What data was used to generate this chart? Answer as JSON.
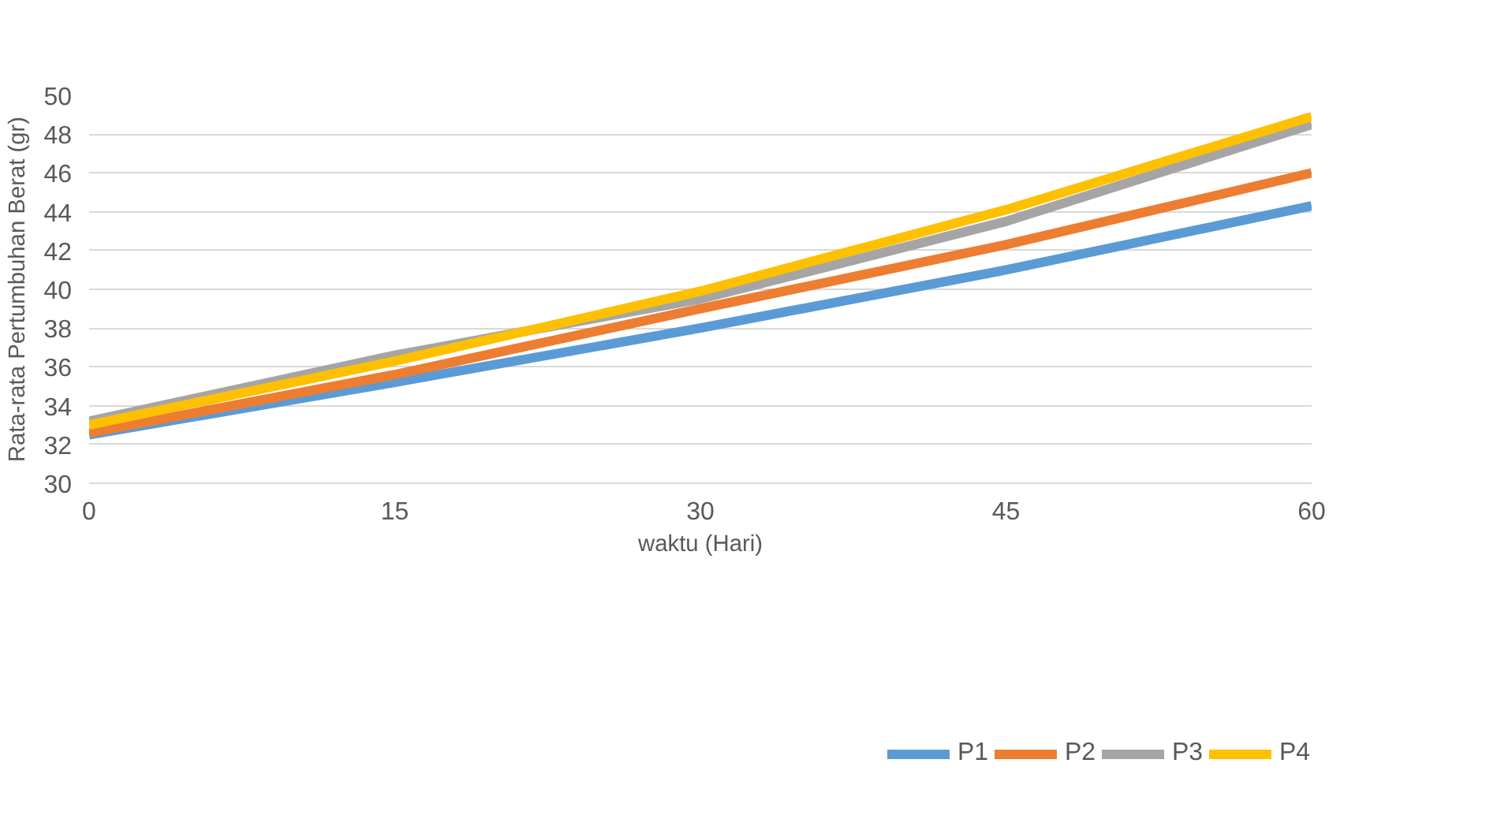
{
  "chart_data": {
    "type": "line",
    "xlabel": "waktu (Hari)",
    "ylabel": "Rata-rata Pertumbuhan Berat (gr)",
    "x": [
      0,
      15,
      30,
      45,
      60
    ],
    "series": [
      {
        "name": "P1",
        "color": "#5b9bd5",
        "values": [
          32.5,
          35.2,
          38.0,
          41.0,
          44.3
        ]
      },
      {
        "name": "P2",
        "color": "#ed7d31",
        "values": [
          32.6,
          35.6,
          39.0,
          42.3,
          46.0
        ]
      },
      {
        "name": "P3",
        "color": "#a5a5a5",
        "values": [
          33.2,
          36.6,
          39.5,
          43.5,
          48.5
        ]
      },
      {
        "name": "P4",
        "color": "#ffc000",
        "values": [
          33.0,
          36.3,
          39.9,
          44.1,
          48.9
        ]
      }
    ],
    "xlim": [
      0,
      60
    ],
    "xticks": [
      0,
      15,
      30,
      45,
      60
    ],
    "ylim": [
      30,
      50
    ],
    "yticks": [
      30,
      32,
      34,
      36,
      38,
      40,
      42,
      44,
      46,
      48,
      50
    ],
    "grid": "y",
    "legend": "bottom",
    "marker": "none",
    "line_style": "solid"
  }
}
